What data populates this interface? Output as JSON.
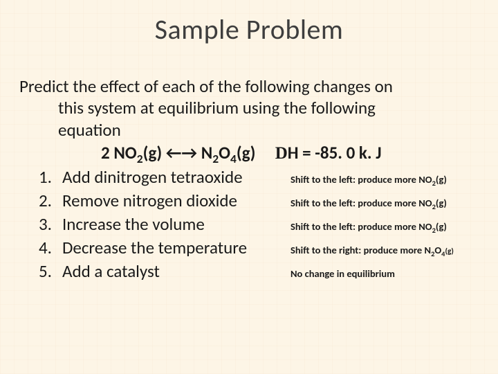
{
  "title": "Sample Problem",
  "prompt_line1": "Predict the effect of each of the following changes on",
  "prompt_line2": "this system at equilibrium using the following",
  "prompt_line3": "equation",
  "equation": {
    "coeff1": "2 NO",
    "sub1": "2",
    "phase1": "(g)",
    "arrows": " ←→ ",
    "coeff2": "N",
    "sub2": "2",
    "coeff3": "O",
    "sub3": "4",
    "phase2": "(g)",
    "gap": "     ",
    "delta": "D",
    "dh_rest": "H = -85. 0 k. J"
  },
  "items": [
    {
      "n": "1.",
      "text": "Add dinitrogen tetraoxide",
      "ans_prefix": "Shift to the left: produce more NO",
      "ans_sub": "2",
      "ans_suffix": "(g)"
    },
    {
      "n": "2.",
      "text": "Remove nitrogen dioxide",
      "ans_prefix": "Shift to the left: produce more NO",
      "ans_sub": "2",
      "ans_suffix": "(g)"
    },
    {
      "n": "3.",
      "text": "Increase the volume",
      "ans_prefix": "Shift to the left: produce more NO",
      "ans_sub": "2",
      "ans_suffix": "(g)"
    },
    {
      "n": "4.",
      "text": "Decrease the temperature",
      "ans_prefix": "Shift to the right: produce more N",
      "ans_sub": "2",
      "ans_mid": "O",
      "ans_sub2": "4",
      "ans_suffix2": "(g)"
    },
    {
      "n": "5.",
      "text": "Add a catalyst",
      "ans_plain": "No change in equilibrium"
    }
  ],
  "colors": {
    "background": "#fdf5e6",
    "text": "#1a1a1a",
    "title": "#3e3e3e"
  },
  "typography": {
    "title_fontsize": 40,
    "body_fontsize": 25,
    "answer_fontsize": 14.5,
    "font_family": "Calibri"
  }
}
